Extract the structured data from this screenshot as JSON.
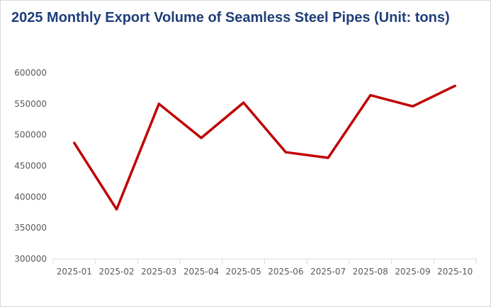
{
  "chart_data": {
    "type": "line",
    "title": "2025 Monthly Export Volume of Seamless Steel Pipes (Unit: tons)",
    "xlabel": "",
    "ylabel": "",
    "categories": [
      "2025-01",
      "2025-02",
      "2025-03",
      "2025-04",
      "2025-05",
      "2025-06",
      "2025-07",
      "2025-08",
      "2025-09",
      "2025-10"
    ],
    "series": [
      {
        "values": [
          487000,
          380000,
          550000,
          495000,
          552000,
          472000,
          463000,
          564000,
          546000,
          579000
        ],
        "color": "#c00000"
      }
    ],
    "ylim": [
      300000,
      600000
    ],
    "yticks": [
      300000,
      350000,
      400000,
      450000,
      500000,
      550000,
      600000
    ],
    "ytick_labels": [
      "300000",
      "350000",
      "400000",
      "450000",
      "500000",
      "550000",
      "600000"
    ],
    "grid": false,
    "legend": "none",
    "axis_color": "#d9d9d9",
    "title_color": "#1f3f7a"
  }
}
